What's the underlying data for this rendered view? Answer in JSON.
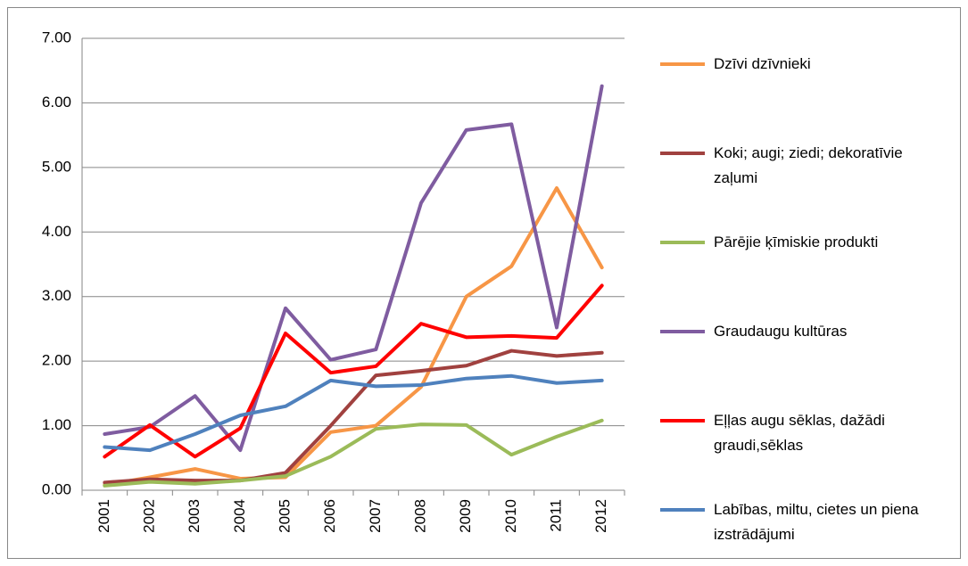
{
  "chart_data": {
    "type": "line",
    "categories": [
      "2001",
      "2002",
      "2003",
      "2004",
      "2005",
      "2006",
      "2007",
      "2008",
      "2009",
      "2010",
      "2011",
      "2012"
    ],
    "series": [
      {
        "name": "Dzīvi dzīvnieki",
        "color": "#f79646",
        "values": [
          0.08,
          0.2,
          0.33,
          0.18,
          0.2,
          0.9,
          1.0,
          1.6,
          3.0,
          3.47,
          4.68,
          3.45
        ]
      },
      {
        "name": "Koki; augi; ziedi; dekoratīvie zaļumi",
        "color": "#a0413f",
        "values": [
          0.12,
          0.17,
          0.15,
          0.15,
          0.27,
          1.0,
          1.78,
          1.85,
          1.93,
          2.16,
          2.08,
          2.13
        ]
      },
      {
        "name": "Pārējie ķīmiskie produkti",
        "color": "#9bbb59",
        "values": [
          0.07,
          0.13,
          0.1,
          0.15,
          0.22,
          0.52,
          0.95,
          1.02,
          1.01,
          0.55,
          0.83,
          1.08
        ]
      },
      {
        "name": "Graudaugu kultūras",
        "color": "#7f5ca0",
        "values": [
          0.87,
          0.98,
          1.46,
          0.62,
          2.82,
          2.02,
          2.18,
          4.45,
          5.58,
          5.67,
          2.52,
          6.26
        ]
      },
      {
        "name": "Eļļas augu sēklas, dažādi graudi,sēklas",
        "color": "#ff0000",
        "values": [
          0.52,
          1.01,
          0.52,
          0.96,
          2.43,
          1.82,
          1.92,
          2.58,
          2.37,
          2.39,
          2.36,
          3.17
        ]
      },
      {
        "name": "Labības, miltu, cietes un piena izstrādājumi",
        "color": "#4f81bd",
        "values": [
          0.67,
          0.62,
          0.87,
          1.16,
          1.3,
          1.7,
          1.61,
          1.63,
          1.73,
          1.77,
          1.66,
          1.7
        ]
      }
    ],
    "ylim": [
      0,
      7
    ],
    "yticks": [
      {
        "value": 0,
        "label": "0.00"
      },
      {
        "value": 1,
        "label": "1.00"
      },
      {
        "value": 2,
        "label": "2.00"
      },
      {
        "value": 3,
        "label": "3.00"
      },
      {
        "value": 4,
        "label": "4.00"
      },
      {
        "value": 5,
        "label": "5.00"
      },
      {
        "value": 6,
        "label": "6.00"
      },
      {
        "value": 7,
        "label": "7.00"
      }
    ],
    "grid": true,
    "legend": "right"
  }
}
